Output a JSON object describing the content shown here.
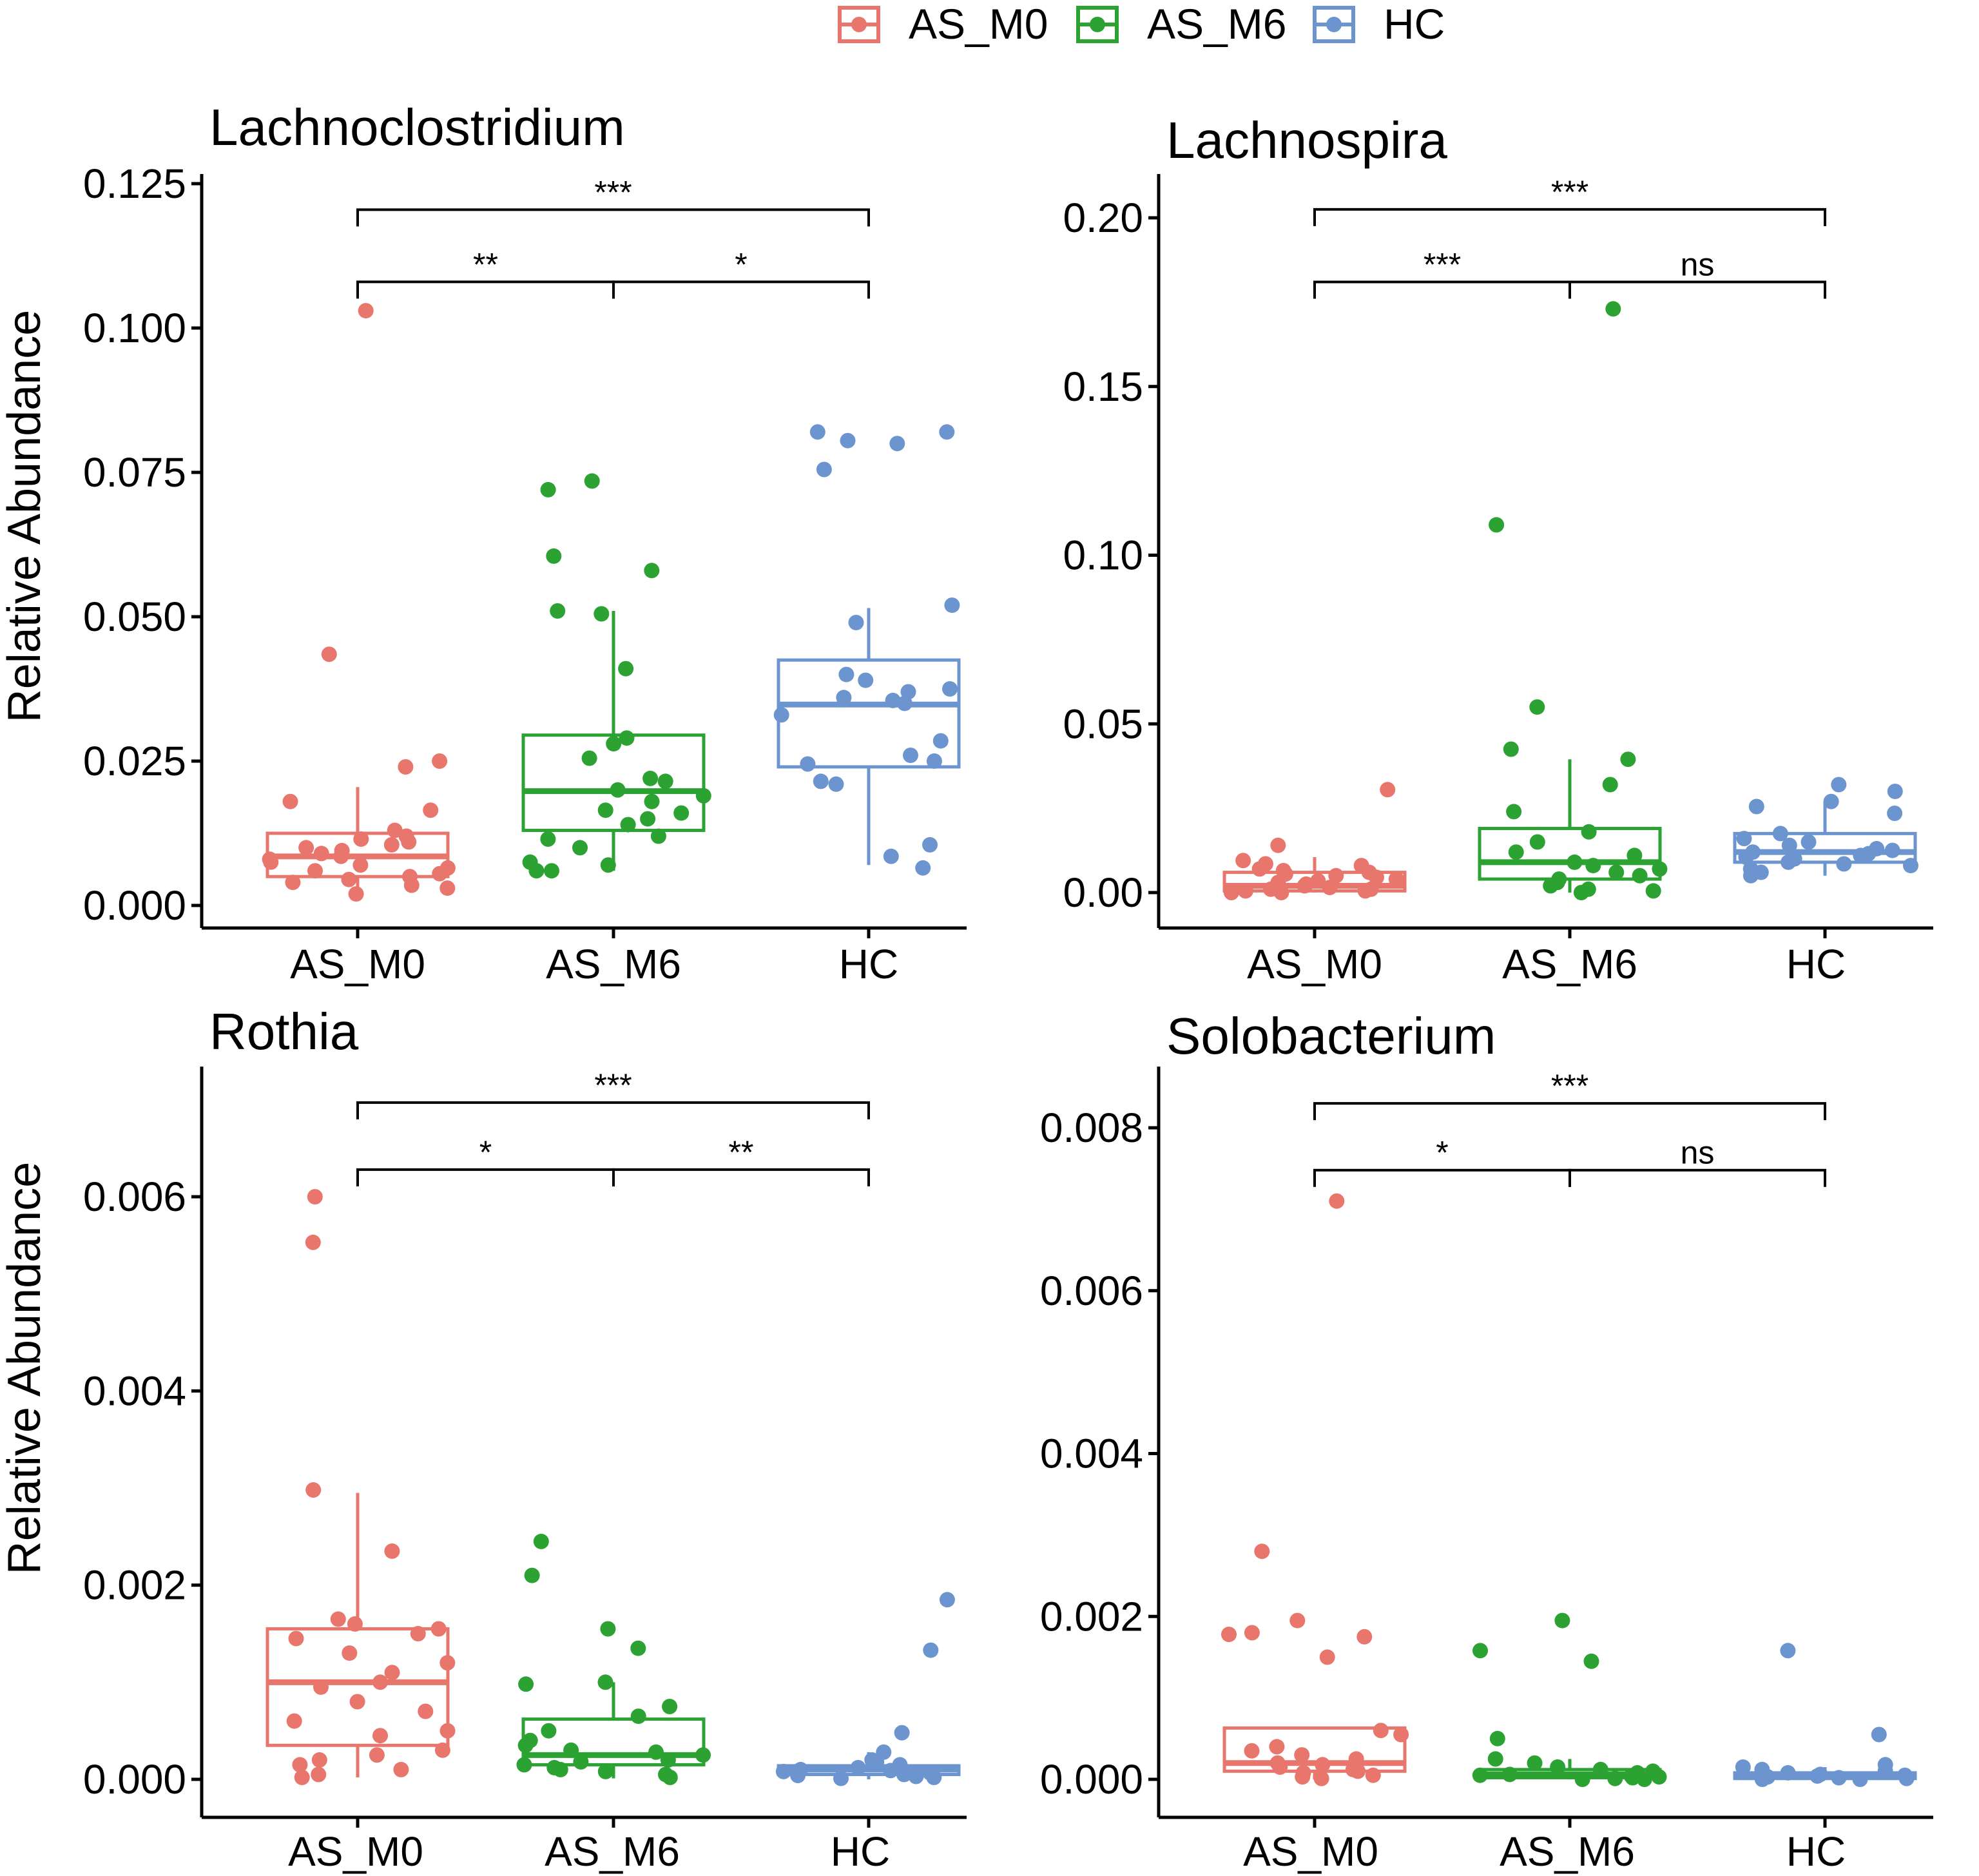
{
  "legend": {
    "items": [
      {
        "label": "AS_M0",
        "color": "#E8766D"
      },
      {
        "label": "AS_M6",
        "color": "#2BA232"
      },
      {
        "label": "HC",
        "color": "#6C95CF"
      }
    ]
  },
  "chart_data": [
    {
      "type": "box",
      "title": "Lachnoclostridium",
      "xlabel": "",
      "ylabel": "Relative Abundance",
      "categories": [
        "AS_M0",
        "AS_M6",
        "HC"
      ],
      "ylim": [
        0,
        0.125
      ],
      "yticks": [
        0.0,
        0.025,
        0.05,
        0.075,
        0.1,
        0.125
      ],
      "ytick_labels": [
        "0.000",
        "0.025",
        "0.050",
        "0.075",
        "0.100",
        "0.125"
      ],
      "boxes": [
        {
          "group": "AS_M0",
          "q1": 0.005,
          "median": 0.0085,
          "q3": 0.0125,
          "whisker_low": 0.002,
          "whisker_high": 0.0205
        },
        {
          "group": "AS_M6",
          "q1": 0.013,
          "median": 0.0198,
          "q3": 0.0295,
          "whisker_low": 0.006,
          "whisker_high": 0.051
        },
        {
          "group": "HC",
          "q1": 0.024,
          "median": 0.0348,
          "q3": 0.0425,
          "whisker_low": 0.007,
          "whisker_high": 0.0515
        }
      ],
      "points": [
        [
          0.103,
          0.0435,
          0.025,
          0.024,
          0.018,
          0.0165,
          0.013,
          0.012,
          0.0115,
          0.011,
          0.0105,
          0.01,
          0.0095,
          0.009,
          0.0085,
          0.008,
          0.0075,
          0.007,
          0.0065,
          0.006,
          0.0055,
          0.005,
          0.0045,
          0.004,
          0.0035,
          0.003,
          0.002
        ],
        [
          0.0735,
          0.072,
          0.0605,
          0.058,
          0.051,
          0.0505,
          0.041,
          0.029,
          0.028,
          0.0255,
          0.022,
          0.0215,
          0.02,
          0.019,
          0.018,
          0.0165,
          0.016,
          0.015,
          0.014,
          0.012,
          0.0115,
          0.01,
          0.0075,
          0.007,
          0.006,
          0.006
        ],
        [
          0.082,
          0.082,
          0.0805,
          0.08,
          0.0755,
          0.052,
          0.049,
          0.04,
          0.039,
          0.0375,
          0.037,
          0.036,
          0.0355,
          0.035,
          0.033,
          0.0285,
          0.026,
          0.025,
          0.0245,
          0.0215,
          0.021,
          0.0105,
          0.0085,
          0.0065
        ]
      ],
      "significance": [
        {
          "from": "AS_M0",
          "to": "HC",
          "label": "***",
          "y": 0.1205
        },
        {
          "from": "AS_M0",
          "to": "AS_M6",
          "label": "**",
          "y": 0.108
        },
        {
          "from": "AS_M6",
          "to": "HC",
          "label": "*",
          "y": 0.108
        }
      ]
    },
    {
      "type": "box",
      "title": "Lachnospira",
      "xlabel": "",
      "ylabel": "",
      "categories": [
        "AS_M0",
        "AS_M6",
        "HC"
      ],
      "ylim": [
        -0.01,
        0.212
      ],
      "yticks": [
        0.0,
        0.05,
        0.1,
        0.15,
        0.2
      ],
      "ytick_labels": [
        "0.00",
        "0.05",
        "0.10",
        "0.15",
        "0.20"
      ],
      "boxes": [
        {
          "group": "AS_M0",
          "q1": 0.0005,
          "median": 0.002,
          "q3": 0.006,
          "whisker_low": 0.0,
          "whisker_high": 0.0105
        },
        {
          "group": "AS_M6",
          "q1": 0.004,
          "median": 0.009,
          "q3": 0.019,
          "whisker_low": 0.0,
          "whisker_high": 0.0395
        },
        {
          "group": "HC",
          "q1": 0.009,
          "median": 0.012,
          "q3": 0.0175,
          "whisker_low": 0.005,
          "whisker_high": 0.027
        }
      ],
      "points": [
        [
          0.0305,
          0.014,
          0.0095,
          0.0085,
          0.008,
          0.007,
          0.0065,
          0.006,
          0.0055,
          0.005,
          0.0045,
          0.004,
          0.0035,
          0.003,
          0.0025,
          0.002,
          0.0015,
          0.001,
          0.001,
          0.0005,
          0.0005,
          0.0,
          0.0
        ],
        [
          0.173,
          0.109,
          0.055,
          0.0425,
          0.0395,
          0.032,
          0.024,
          0.018,
          0.015,
          0.012,
          0.011,
          0.009,
          0.008,
          0.007,
          0.006,
          0.005,
          0.004,
          0.003,
          0.002,
          0.001,
          0.0005,
          0.0
        ],
        [
          0.032,
          0.03,
          0.027,
          0.0255,
          0.0235,
          0.0175,
          0.016,
          0.015,
          0.014,
          0.013,
          0.0125,
          0.012,
          0.0115,
          0.011,
          0.0105,
          0.01,
          0.009,
          0.0085,
          0.008,
          0.007,
          0.006,
          0.005
        ]
      ],
      "significance": [
        {
          "from": "AS_M0",
          "to": "HC",
          "label": "***",
          "y": 0.2025
        },
        {
          "from": "AS_M0",
          "to": "AS_M6",
          "label": "***",
          "y": 0.181
        },
        {
          "from": "AS_M6",
          "to": "HC",
          "label": "ns",
          "y": 0.181
        }
      ]
    },
    {
      "type": "box",
      "title": "Rothia",
      "xlabel": "",
      "ylabel": "Relative Abundance",
      "categories": [
        "AS_M0",
        "AS_M6",
        "HC"
      ],
      "ylim": [
        -0.0004,
        0.0075
      ],
      "yticks": [
        0.0,
        0.002,
        0.004,
        0.006
      ],
      "ytick_labels": [
        "0.000",
        "0.002",
        "0.004",
        "0.006"
      ],
      "boxes": [
        {
          "group": "AS_M0",
          "q1": 0.00035,
          "median": 0.001,
          "q3": 0.00155,
          "whisker_low": 2e-05,
          "whisker_high": 0.00295
        },
        {
          "group": "AS_M6",
          "q1": 0.00015,
          "median": 0.00025,
          "q3": 0.00062,
          "whisker_low": 1e-05,
          "whisker_high": 0.001
        },
        {
          "group": "HC",
          "q1": 5e-05,
          "median": 0.0001,
          "q3": 0.00014,
          "whisker_low": 0.0,
          "whisker_high": 0.00028
        }
      ],
      "points": [
        [
          0.006,
          0.00553,
          0.00298,
          0.00235,
          0.00165,
          0.0016,
          0.00155,
          0.0015,
          0.00145,
          0.0013,
          0.0012,
          0.0011,
          0.001,
          0.00095,
          0.0008,
          0.0007,
          0.0006,
          0.0005,
          0.00045,
          0.0003,
          0.00025,
          0.0002,
          0.00015,
          0.0001,
          5e-05,
          2e-05
        ],
        [
          0.00245,
          0.0021,
          0.00155,
          0.00135,
          0.001,
          0.00098,
          0.00075,
          0.00065,
          0.0005,
          0.0004,
          0.00035,
          0.0003,
          0.00028,
          0.00025,
          0.0002,
          0.00018,
          0.00015,
          0.00012,
          0.0001,
          8e-05,
          5e-05,
          2e-05
        ],
        [
          0.00185,
          0.00133,
          0.00048,
          0.00028,
          0.0002,
          0.00018,
          0.00015,
          0.00012,
          0.0001,
          9e-05,
          8e-05,
          7e-05,
          6e-05,
          5e-05,
          4e-05,
          3e-05,
          2e-05,
          1e-05
        ]
      ],
      "significance": [
        {
          "from": "AS_M0",
          "to": "HC",
          "label": "***",
          "y": 0.00697
        },
        {
          "from": "AS_M0",
          "to": "AS_M6",
          "label": "*",
          "y": 0.00628
        },
        {
          "from": "AS_M6",
          "to": "HC",
          "label": "**",
          "y": 0.00628
        }
      ]
    },
    {
      "type": "box",
      "title": "Solobacterium",
      "xlabel": "",
      "ylabel": "",
      "categories": [
        "AS_M0",
        "AS_M6",
        "HC"
      ],
      "ylim": [
        -0.0004,
        0.0085
      ],
      "yticks": [
        0.0,
        0.002,
        0.004,
        0.006,
        0.008
      ],
      "ytick_labels": [
        "0.000",
        "0.002",
        "0.004",
        "0.006",
        "0.008"
      ],
      "boxes": [
        {
          "group": "AS_M0",
          "q1": 0.0001,
          "median": 0.0002,
          "q3": 0.00063,
          "whisker_low": 0.0,
          "whisker_high": 0.00063
        },
        {
          "group": "AS_M6",
          "q1": 2e-05,
          "median": 6e-05,
          "q3": 0.00012,
          "whisker_low": 0.0,
          "whisker_high": 0.00025
        },
        {
          "group": "HC",
          "q1": 1e-05,
          "median": 4e-05,
          "q3": 8e-05,
          "whisker_low": 0.0,
          "whisker_high": 0.00015
        }
      ],
      "points": [
        [
          0.0071,
          0.0028,
          0.00195,
          0.0018,
          0.00178,
          0.00175,
          0.0015,
          0.0006,
          0.00055,
          0.0004,
          0.00035,
          0.0003,
          0.00025,
          0.0002,
          0.00018,
          0.00015,
          0.00012,
          0.0001,
          8e-05,
          5e-05,
          3e-05,
          1e-05
        ],
        [
          0.00195,
          0.00158,
          0.00145,
          0.0005,
          0.00025,
          0.0002,
          0.00015,
          0.00012,
          0.0001,
          8e-05,
          6e-05,
          5e-05,
          4e-05,
          3e-05,
          2e-05,
          1e-05,
          0.0,
          0.0
        ],
        [
          0.00158,
          0.00055,
          0.00018,
          0.00015,
          0.00012,
          0.0001,
          8e-05,
          6e-05,
          5e-05,
          4e-05,
          3e-05,
          2e-05,
          1e-05,
          0.0,
          0.0
        ]
      ],
      "significance": [
        {
          "from": "AS_M0",
          "to": "HC",
          "label": "***",
          "y": 0.0083
        },
        {
          "from": "AS_M0",
          "to": "AS_M6",
          "label": "*",
          "y": 0.00748
        },
        {
          "from": "AS_M6",
          "to": "HC",
          "label": "ns",
          "y": 0.00748
        }
      ]
    }
  ]
}
